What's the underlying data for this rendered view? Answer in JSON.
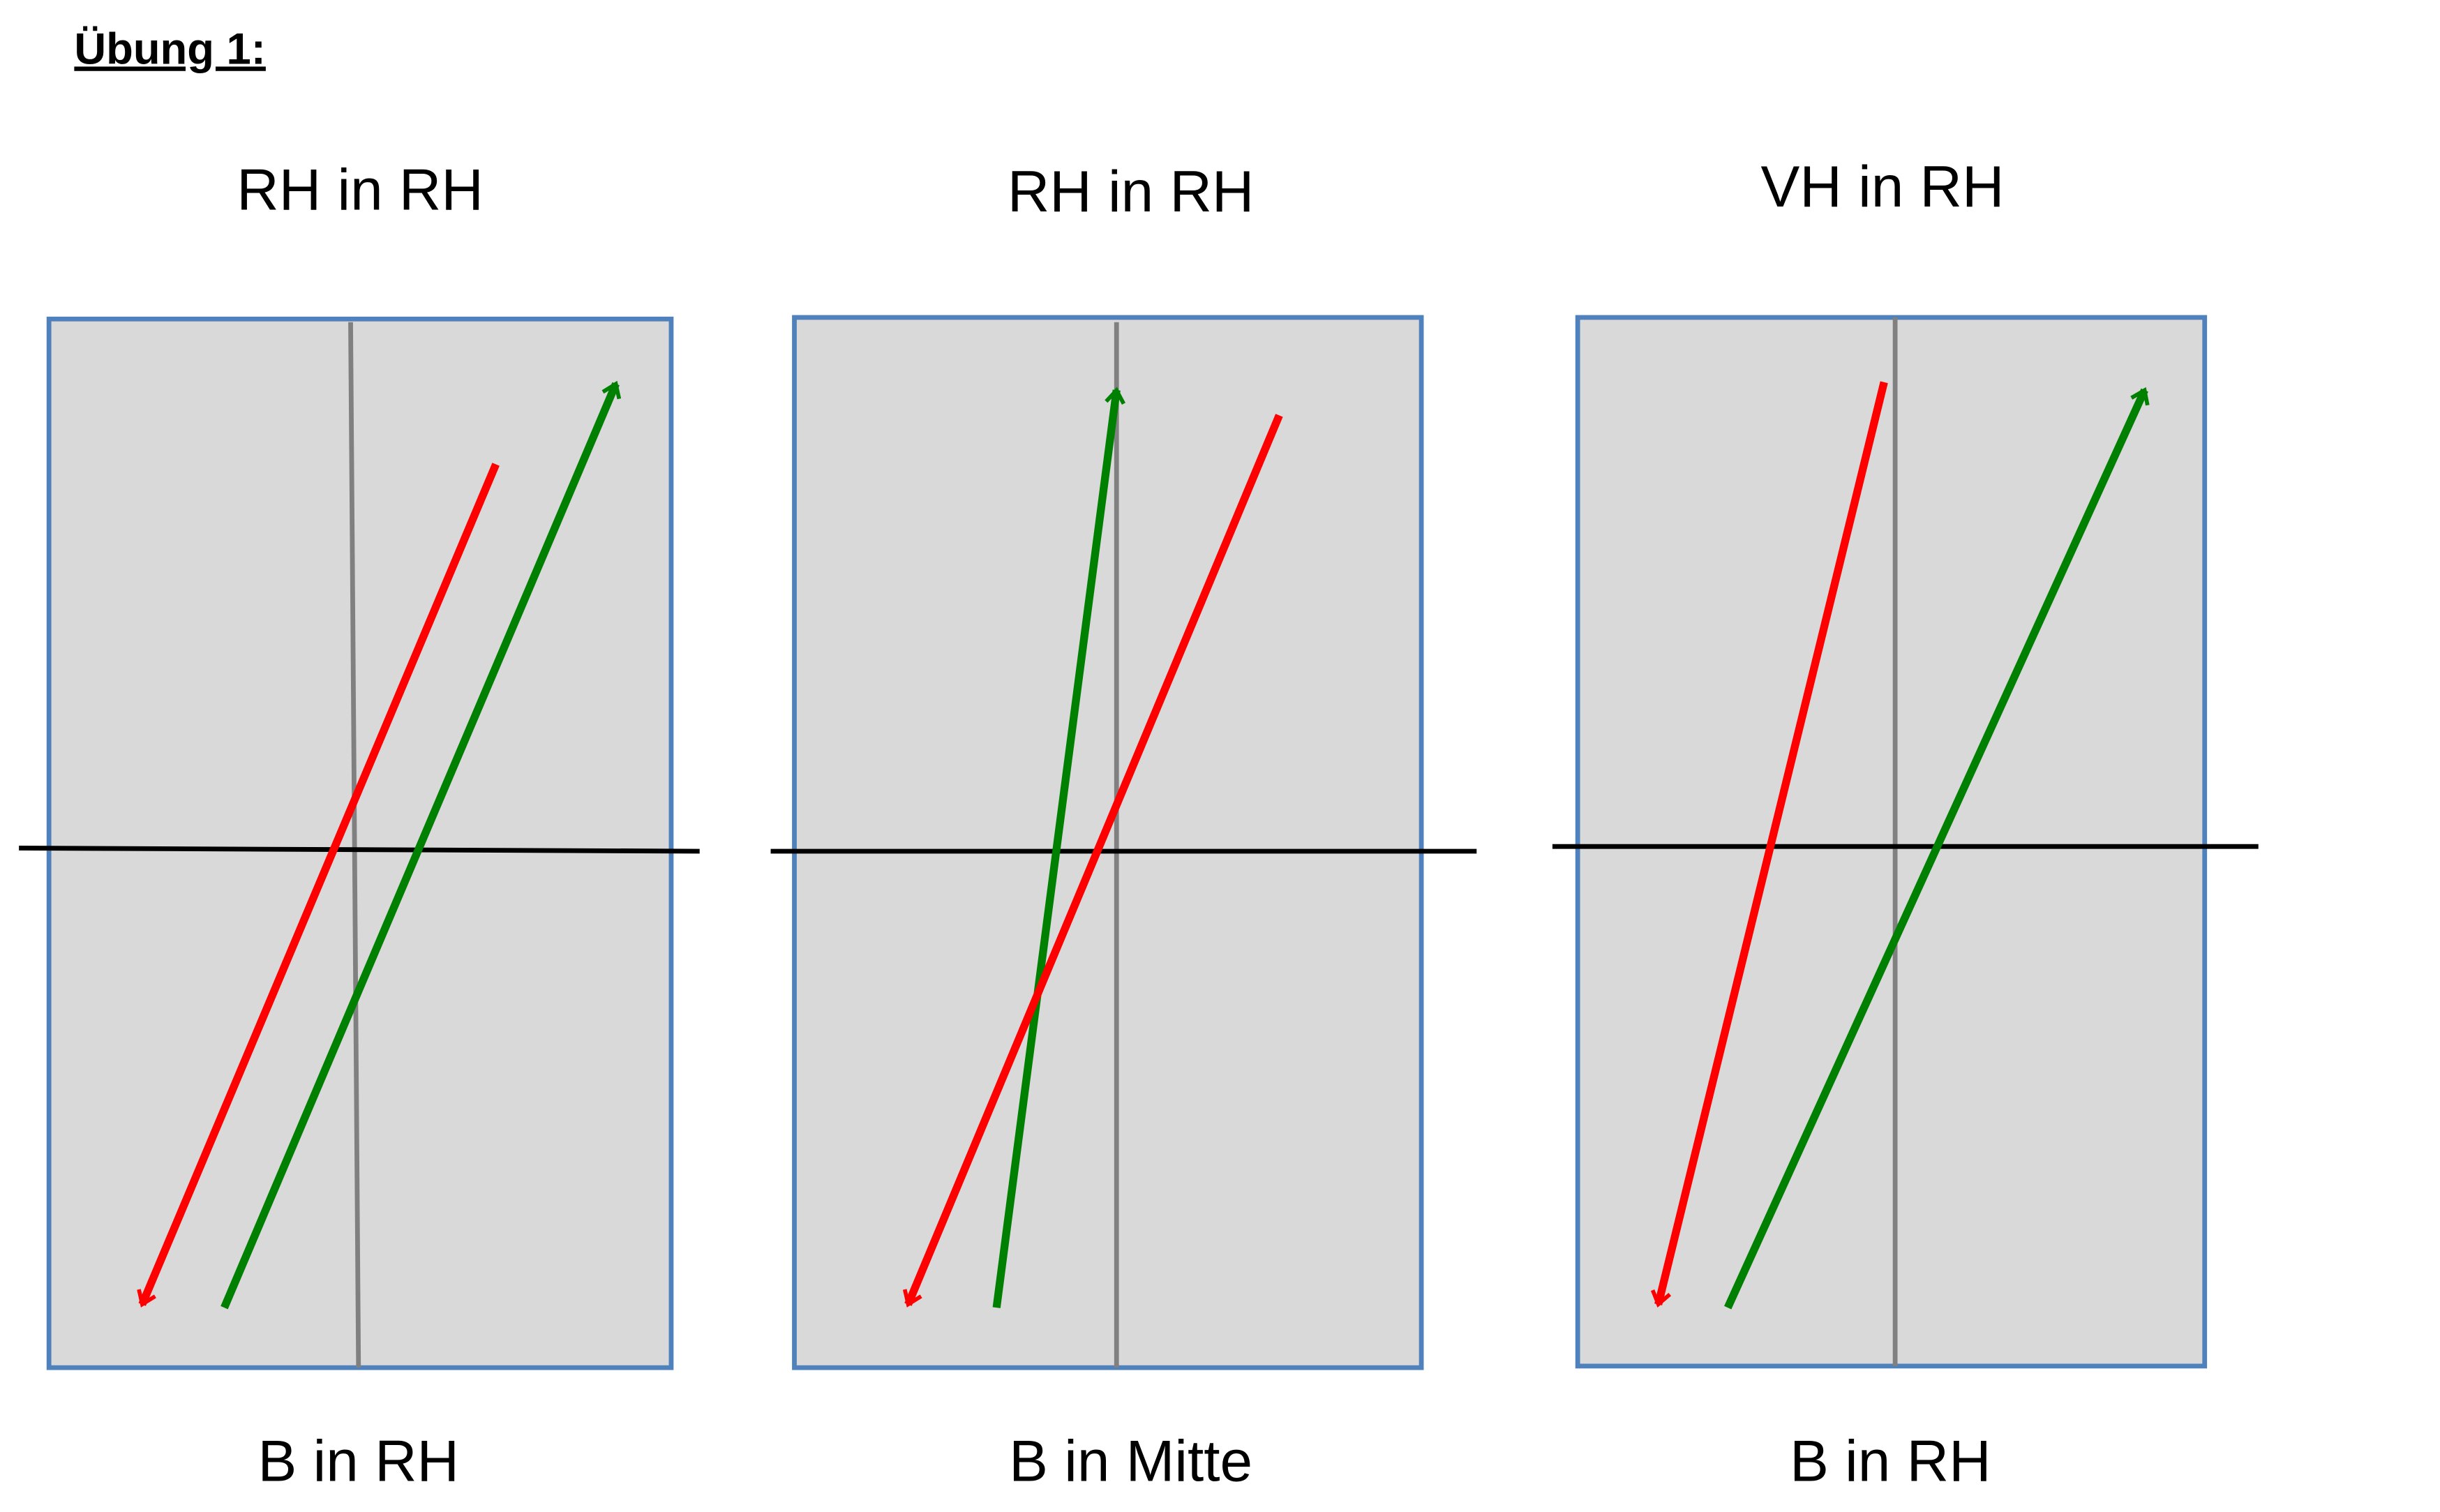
{
  "header": {
    "title": "Übung 1:"
  },
  "panels": [
    {
      "top_label": "RH in RH",
      "bottom_label": "B in RH"
    },
    {
      "top_label": "RH in RH",
      "bottom_label": "B in Mitte"
    },
    {
      "top_label": "VH in RH",
      "bottom_label": "B in RH"
    }
  ]
}
